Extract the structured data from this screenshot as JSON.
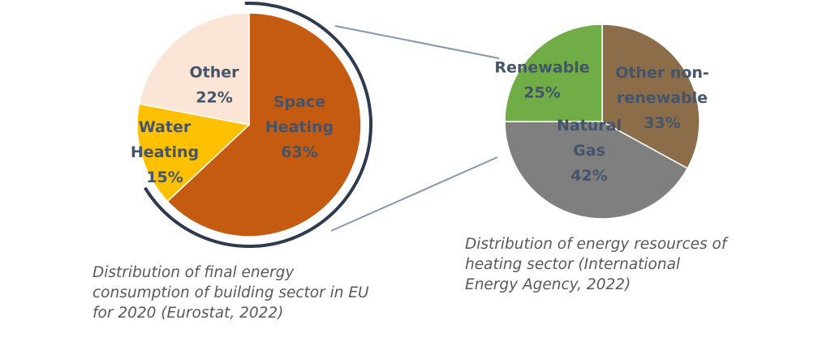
{
  "chart_data": [
    {
      "type": "pie",
      "title": "Distribution of final energy consumption of building sector in EU for 2020 (Eurostat, 2022)",
      "caption_lines": [
        "Distribution of final energy",
        "consumption of building sector in EU",
        "for 2020 (Eurostat, 2022)"
      ],
      "slices": [
        {
          "name": "Space Heating",
          "value": 63,
          "label_lines": [
            "Space",
            "Heating",
            "63%"
          ],
          "color": "#c55a11"
        },
        {
          "name": "Water Heating",
          "value": 15,
          "label_lines": [
            "Water",
            "Heating",
            "15%"
          ],
          "color": "#ffc000"
        },
        {
          "name": "Other",
          "value": 22,
          "label_lines": [
            "Other",
            "22%"
          ],
          "color": "#fbe5d6"
        }
      ]
    },
    {
      "type": "pie",
      "title": "Distribution of energy resources of heating sector (International Energy Agency, 2022)",
      "caption_lines": [
        "Distribution of energy resources of",
        "heating sector (International",
        "Energy Agency, 2022)"
      ],
      "slices": [
        {
          "name": "Other non-renewable",
          "value": 33,
          "label_lines": [
            "Other non-",
            "renewable",
            "33%"
          ],
          "color": "#8c6d4a"
        },
        {
          "name": "Natural Gas",
          "value": 42,
          "label_lines": [
            "Natural",
            "Gas",
            "42%"
          ],
          "color": "#7f7f7f"
        },
        {
          "name": "Renewable",
          "value": 25,
          "label_lines": [
            "Renewable",
            "25%"
          ],
          "color": "#70ad47"
        }
      ]
    }
  ],
  "colors": {
    "label_text": "#44546a",
    "caption_text": "#595959",
    "bracket_arc": "#2e3b4e",
    "connector_line": "#8497b0"
  }
}
